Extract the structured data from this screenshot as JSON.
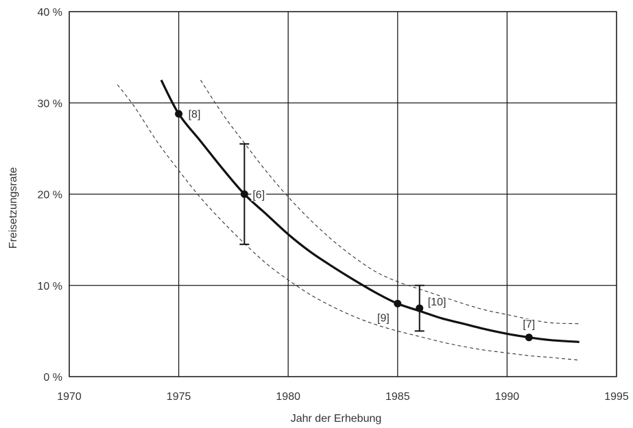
{
  "chart_data": {
    "type": "line",
    "title": "",
    "xlabel": "Jahr der Erhebung",
    "ylabel": "Freisetzungsrate",
    "xlim": [
      1970,
      1995
    ],
    "ylim": [
      0,
      40
    ],
    "grid": true,
    "x_ticks": [
      1970,
      1975,
      1980,
      1985,
      1990,
      1995
    ],
    "x_tick_labels": [
      "1970",
      "1975",
      "1980",
      "1985",
      "1990",
      "1995"
    ],
    "y_ticks": [
      0,
      10,
      20,
      30,
      40
    ],
    "y_tick_labels": [
      "0 %",
      "10 %",
      "20 %",
      "30 %",
      "40 %"
    ],
    "points": [
      {
        "x": 1975,
        "y": 28.8,
        "label": "[8]"
      },
      {
        "x": 1978,
        "y": 20.0,
        "label": "[6]",
        "err": [
          14.5,
          25.5
        ]
      },
      {
        "x": 1985,
        "y": 8.0,
        "label": "[9]"
      },
      {
        "x": 1986,
        "y": 7.5,
        "label": "[10]",
        "err": [
          5.0,
          10.0
        ]
      },
      {
        "x": 1991,
        "y": 4.3,
        "label": "[7]"
      }
    ],
    "series": [
      {
        "role": "fit",
        "x": [
          1974.2,
          1975,
          1976,
          1977,
          1978,
          1979,
          1980,
          1981,
          1982,
          1983,
          1984,
          1985,
          1986,
          1987,
          1988,
          1989,
          1990,
          1991,
          1992,
          1993.3
        ],
        "y": [
          32.5,
          28.8,
          25.8,
          22.8,
          20.0,
          17.8,
          15.6,
          13.7,
          12.1,
          10.6,
          9.2,
          8.0,
          7.2,
          6.4,
          5.8,
          5.2,
          4.7,
          4.3,
          4.0,
          3.8
        ]
      },
      {
        "role": "upper-bound",
        "x": [
          1976.0,
          1977,
          1978,
          1979,
          1980,
          1981,
          1982,
          1983,
          1984,
          1985,
          1986,
          1987,
          1988,
          1989,
          1990,
          1991,
          1992,
          1993.3
        ],
        "y": [
          32.5,
          28.8,
          25.6,
          22.5,
          19.7,
          17.2,
          15.0,
          13.1,
          11.5,
          10.4,
          9.6,
          8.8,
          8.0,
          7.3,
          6.8,
          6.3,
          5.9,
          5.8
        ]
      },
      {
        "role": "lower-bound",
        "x": [
          1972.2,
          1973,
          1974,
          1975,
          1976,
          1977,
          1978,
          1979,
          1980,
          1981,
          1982,
          1983,
          1984,
          1985,
          1986,
          1987,
          1988,
          1989,
          1990,
          1991,
          1992,
          1993.3
        ],
        "y": [
          32.0,
          29.5,
          25.8,
          22.6,
          19.6,
          17.0,
          14.6,
          12.4,
          10.6,
          9.0,
          7.7,
          6.6,
          5.7,
          5.0,
          4.4,
          3.8,
          3.3,
          2.9,
          2.6,
          2.3,
          2.1,
          1.8
        ]
      }
    ]
  }
}
